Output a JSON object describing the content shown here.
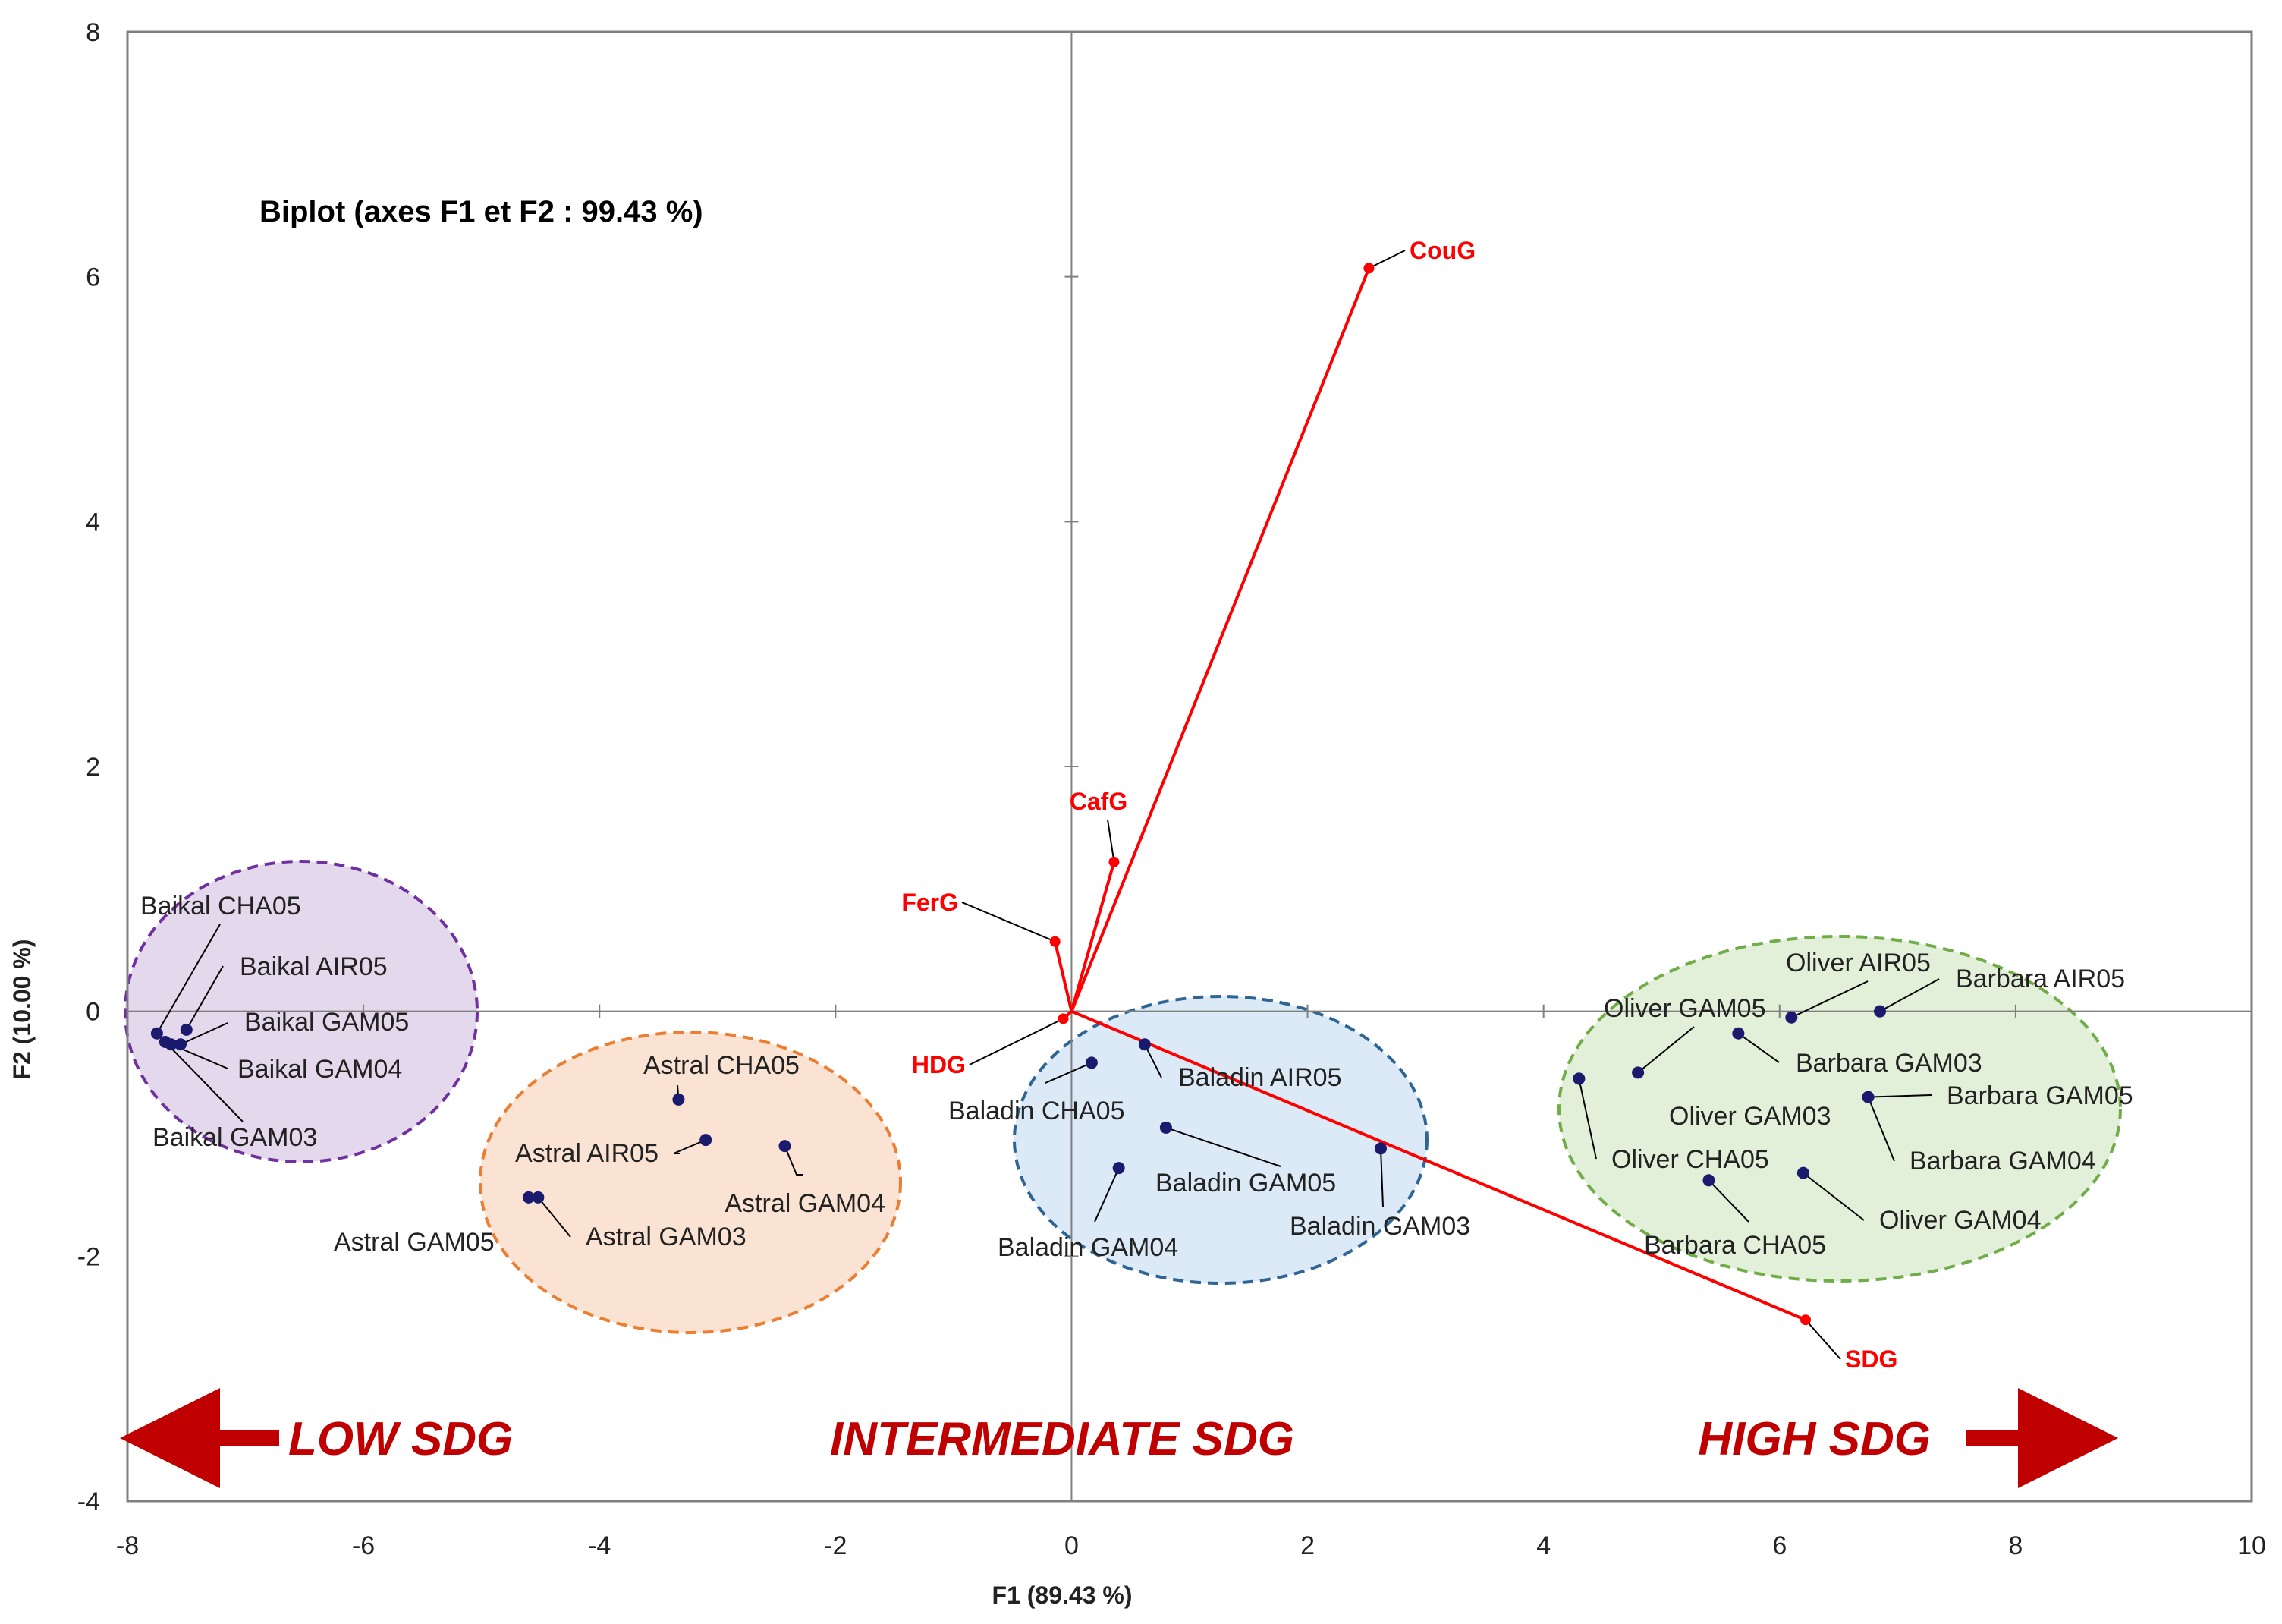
{
  "chart_data": {
    "type": "scatter",
    "title": "Biplot (axes F1 et F2 : 99.43 %)",
    "xlabel": "F1 (89.43 %)",
    "ylabel": "F2 (10.00 %)",
    "xlim": [
      -8,
      10
    ],
    "ylim": [
      -4,
      8
    ],
    "xticks": [
      -8,
      -6,
      -4,
      -2,
      0,
      2,
      4,
      6,
      8,
      10
    ],
    "yticks": [
      -4,
      -2,
      0,
      2,
      4,
      6,
      8
    ],
    "grid": false,
    "observations": [
      {
        "label": "Baikal  CHA05",
        "x": -7.75,
        "y": -0.18
      },
      {
        "label": "Baikal AIR05",
        "x": -7.5,
        "y": -0.15
      },
      {
        "label": "Baikal  GAM05",
        "x": -7.55,
        "y": -0.27
      },
      {
        "label": "Baikal GAM04",
        "x": -7.63,
        "y": -0.27
      },
      {
        "label": "Baikal GAM03",
        "x": -7.68,
        "y": -0.25
      },
      {
        "label": "Astral  CHA05",
        "x": -3.33,
        "y": -0.72
      },
      {
        "label": "Astral AIR05",
        "x": -3.1,
        "y": -1.05
      },
      {
        "label": "Astral GAM04",
        "x": -2.43,
        "y": -1.1
      },
      {
        "label": "Astral  GAM05",
        "x": -4.6,
        "y": -1.52
      },
      {
        "label": "Astral GAM03",
        "x": -4.52,
        "y": -1.52
      },
      {
        "label": "Baladin  CHA05",
        "x": 0.17,
        "y": -0.42
      },
      {
        "label": "Baladin AIR05",
        "x": 0.62,
        "y": -0.27
      },
      {
        "label": "Baladin  GAM05",
        "x": 0.8,
        "y": -0.95
      },
      {
        "label": "Baladin GAM04",
        "x": 0.4,
        "y": -1.28
      },
      {
        "label": "Baladin GAM03",
        "x": 2.62,
        "y": -1.12
      },
      {
        "label": "Oliver AIR05",
        "x": 6.1,
        "y": -0.05
      },
      {
        "label": "Barbara AIR05",
        "x": 6.85,
        "y": 0.0
      },
      {
        "label": "Oliver  GAM05",
        "x": 4.8,
        "y": -0.5
      },
      {
        "label": "Barbara GAM03",
        "x": 5.65,
        "y": -0.18
      },
      {
        "label": "Barbara  GAM05",
        "x": 6.75,
        "y": -0.7
      },
      {
        "label": "Oliver GAM03",
        "x": 4.3,
        "y": -0.55
      },
      {
        "label": "Barbara GAM04",
        "x": 6.75,
        "y": -0.7
      },
      {
        "label": "Oliver  CHA05",
        "x": 4.3,
        "y": -0.55
      },
      {
        "label": "Oliver GAM04",
        "x": 6.2,
        "y": -1.32
      },
      {
        "label": "Barbara  CHA05",
        "x": 5.4,
        "y": -1.38
      }
    ],
    "variables": [
      {
        "label": "CouG",
        "x": 2.52,
        "y": 6.07
      },
      {
        "label": "CafG",
        "x": 0.36,
        "y": 1.22
      },
      {
        "label": "FerG",
        "x": -0.14,
        "y": 0.57
      },
      {
        "label": "HDG",
        "x": -0.07,
        "y": -0.06
      },
      {
        "label": "SDG",
        "x": 6.22,
        "y": -2.52
      }
    ],
    "zones": [
      {
        "label": "LOW SDG",
        "color": "#7030a0",
        "fill": "#e4d9ec"
      },
      {
        "label": "INTERMEDIATE SDG",
        "color": "#ed7d31",
        "fill": "#fbe3d3"
      },
      {
        "label": "",
        "color": "#2e6594",
        "fill": "#dce9f6"
      },
      {
        "label": "HIGH SDG",
        "color": "#70ad47",
        "fill": "#e2efd9"
      }
    ],
    "colors": {
      "observation": "#1a1a6e",
      "variable": "#ff0000",
      "axis": "#808080",
      "zone_text": "#c00000"
    }
  }
}
